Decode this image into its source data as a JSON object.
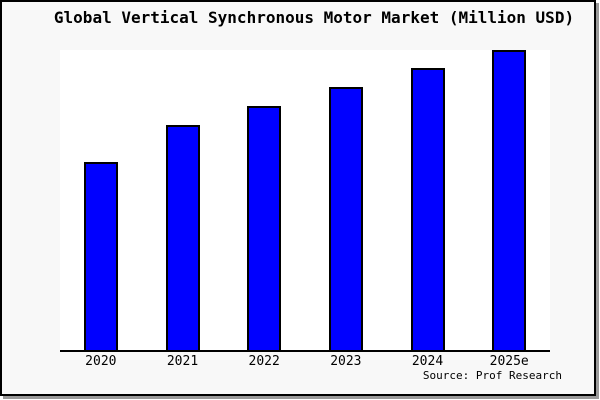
{
  "figure": {
    "background": "#f8f8f8",
    "plot_background": "#ffffff",
    "frame_color": "#000000",
    "shadow_color": "#999999"
  },
  "chart_data": {
    "type": "bar",
    "title": "Global Vertical Synchronous Motor Market (Million USD)",
    "categories": [
      "2020",
      "2021",
      "2022",
      "2023",
      "2024",
      "2025e"
    ],
    "values": [
      62.8,
      75.0,
      81.4,
      87.7,
      94.0,
      100
    ],
    "ylim": [
      0,
      100
    ],
    "xlabel": "",
    "ylabel": "",
    "grid": false,
    "legend": false,
    "y_axis_labels_shown": false,
    "bar_color": "#0000ff",
    "bar_border_color": "#000000",
    "source": "Source: Prof Research"
  }
}
